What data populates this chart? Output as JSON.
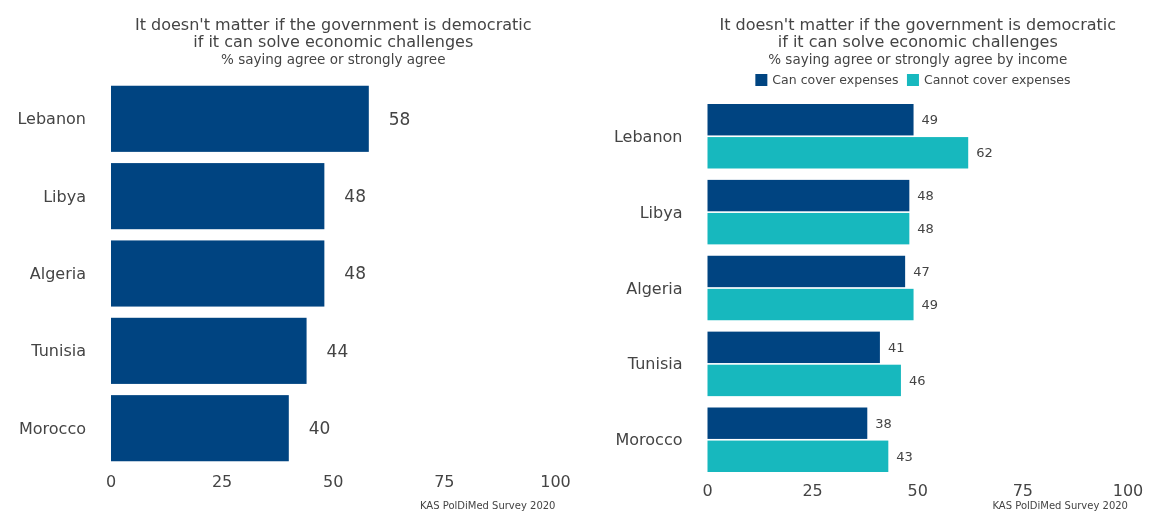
{
  "chart_data": [
    {
      "type": "bar",
      "orientation": "horizontal",
      "title": "It doesn't matter if the government is democratic\nif it can solve economic challenges",
      "subtitle": "% saying agree or strongly agree",
      "categories": [
        "Lebanon",
        "Libya",
        "Algeria",
        "Tunisia",
        "Morocco"
      ],
      "series": [
        {
          "color": "#004481",
          "values": [
            58,
            48,
            48,
            44,
            40
          ]
        }
      ],
      "data_labels": true,
      "xlim": [
        0,
        100
      ],
      "xticks": [
        0,
        25,
        50,
        75,
        100
      ],
      "grid": false,
      "legend": false,
      "annotations": [
        "KAS PolDiMed Survey 2020"
      ]
    },
    {
      "type": "bar",
      "orientation": "horizontal",
      "title": "It doesn't matter if the government is democratic\nif it can solve economic challenges",
      "subtitle": "% saying agree or strongly agree by income",
      "categories": [
        "Lebanon",
        "Libya",
        "Algeria",
        "Tunisia",
        "Morocco"
      ],
      "series": [
        {
          "name": "Can cover expenses",
          "color": "#004481",
          "values": [
            49,
            48,
            47,
            41,
            38
          ]
        },
        {
          "name": "Cannot cover expenses",
          "color": "#17b8be",
          "values": [
            62,
            48,
            49,
            46,
            43
          ]
        }
      ],
      "data_labels": true,
      "xlim": [
        0,
        100
      ],
      "xticks": [
        0,
        25,
        50,
        75,
        100
      ],
      "grid": false,
      "legend": "top",
      "annotations": [
        "KAS PolDiMed Survey 2020"
      ]
    }
  ]
}
